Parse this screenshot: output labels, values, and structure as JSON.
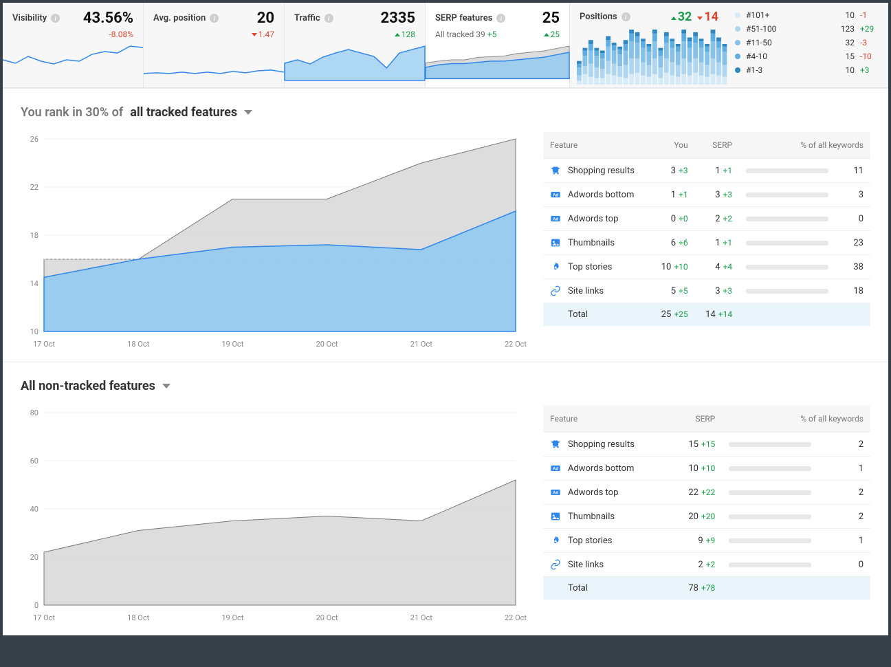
{
  "colors": {
    "blue": "#2f86eb",
    "blue_fill": "#8ec9f2",
    "grey_fill": "#d9d9d9",
    "pos": "#1a9c4a",
    "neg": "#e0452f",
    "grid": "#f0f0f0",
    "text_muted": "#888888"
  },
  "cards": {
    "visibility": {
      "title": "Visibility",
      "value": "43.56%",
      "delta": "-8.08%",
      "delta_dir": "neg",
      "spark": {
        "type": "line",
        "ymin": 0,
        "ymax": 60,
        "points": [
          30,
          25,
          35,
          28,
          24,
          30,
          28,
          38,
          42,
          40,
          50,
          48
        ]
      }
    },
    "avg_position": {
      "title": "Avg. position",
      "value": "20",
      "delta": "1.47",
      "delta_dir": "neg",
      "spark": {
        "type": "line",
        "ymin": 0,
        "ymax": 60,
        "points": [
          10,
          11,
          10,
          12,
          10,
          12,
          10,
          13,
          11,
          14,
          15,
          12
        ]
      }
    },
    "traffic": {
      "title": "Traffic",
      "value": "2335",
      "delta": "128",
      "delta_dir": "pos",
      "spark": {
        "type": "area_blue",
        "ymin": 0,
        "ymax": 60,
        "points": [
          25,
          30,
          24,
          34,
          40,
          45,
          40,
          35,
          18,
          40,
          45,
          50
        ]
      }
    },
    "serp": {
      "title": "SERP features",
      "value": "25",
      "sub_label": "All tracked",
      "sub_val": "39",
      "sub_delta": "+5",
      "delta": "25",
      "delta_dir": "pos",
      "spark": {
        "type": "area_both",
        "ymin": 0,
        "ymax": 60,
        "grey": [
          25,
          28,
          30,
          30,
          34,
          35,
          36,
          40,
          42,
          44,
          48,
          52
        ],
        "blue": [
          18,
          22,
          24,
          24,
          26,
          28,
          28,
          30,
          32,
          34,
          38,
          42
        ]
      }
    },
    "positions": {
      "title": "Positions",
      "up": "32",
      "down": "14",
      "bars": [
        [
          3,
          8,
          6,
          5,
          5,
          8,
          7,
          6,
          5,
          8,
          9,
          7,
          6,
          8,
          5,
          9,
          7,
          6,
          8,
          7,
          9,
          7,
          6,
          8,
          7,
          6
        ],
        [
          4,
          6,
          10,
          8,
          7,
          10,
          9,
          8,
          10,
          12,
          11,
          10,
          9,
          12,
          8,
          11,
          10,
          9,
          12,
          10,
          11,
          10,
          9,
          12,
          10,
          9
        ],
        [
          6,
          8,
          10,
          9,
          8,
          11,
          10,
          9,
          11,
          13,
          12,
          11,
          10,
          13,
          9,
          12,
          11,
          10,
          13,
          11,
          12,
          11,
          10,
          13,
          11,
          10
        ],
        [
          3,
          4,
          5,
          4,
          4,
          5,
          4,
          4,
          5,
          6,
          5,
          5,
          4,
          6,
          4,
          5,
          5,
          4,
          6,
          5,
          5,
          5,
          4,
          6,
          5,
          4
        ],
        [
          2,
          2,
          3,
          2,
          2,
          3,
          2,
          2,
          3,
          3,
          3,
          2,
          2,
          3,
          2,
          3,
          2,
          2,
          3,
          3,
          3,
          2,
          2,
          3,
          3,
          2
        ]
      ],
      "bar_colors": [
        "#d6eaf8",
        "#aed6f1",
        "#85c1e9",
        "#5dade2",
        "#2e86c1"
      ],
      "legend": [
        {
          "color": "#d6eaf8",
          "label": "#101+",
          "val": "10",
          "delta": "-1",
          "dir": "neg"
        },
        {
          "color": "#aed6f1",
          "label": "#51-100",
          "val": "123",
          "delta": "+29",
          "dir": "pos"
        },
        {
          "color": "#85c1e9",
          "label": "#11-50",
          "val": "32",
          "delta": "-3",
          "dir": "neg"
        },
        {
          "color": "#5dade2",
          "label": "#4-10",
          "val": "15",
          "delta": "-10",
          "dir": "neg"
        },
        {
          "color": "#2e86c1",
          "label": "#1-3",
          "val": "10",
          "delta": "+3",
          "dir": "pos"
        }
      ]
    }
  },
  "tracked": {
    "title_prefix": "You rank in 30% of",
    "title_bold": "all tracked features",
    "chart": {
      "x_labels": [
        "17 Oct",
        "18 Oct",
        "19 Oct",
        "20 Oct",
        "21 Oct",
        "22 Oct"
      ],
      "y_ticks": [
        10,
        14,
        18,
        22,
        26
      ],
      "ymin": 10,
      "ymax": 26,
      "dash_y": 16,
      "grey": [
        16,
        16,
        21,
        21,
        24,
        26
      ],
      "blue": [
        14.5,
        16,
        17,
        17.2,
        16.8,
        20
      ]
    },
    "table": {
      "headers": {
        "feature": "Feature",
        "you": "You",
        "serp": "SERP",
        "pct": "% of all keywords"
      },
      "rows": [
        {
          "icon": "shopping",
          "name": "Shopping results",
          "you": "3",
          "you_d": "+3",
          "serp": "1",
          "serp_d": "+1",
          "bar": 11,
          "pct": "11"
        },
        {
          "icon": "ad",
          "name": "Adwords bottom",
          "you": "1",
          "you_d": "+1",
          "serp": "3",
          "serp_d": "+3",
          "bar": 3,
          "pct": "3"
        },
        {
          "icon": "ad",
          "name": "Adwords top",
          "you": "0",
          "you_d": "+0",
          "serp": "2",
          "serp_d": "+2",
          "bar": 0,
          "pct": "0"
        },
        {
          "icon": "image",
          "name": "Thumbnails",
          "you": "6",
          "you_d": "+6",
          "serp": "1",
          "serp_d": "+1",
          "bar": 23,
          "pct": "23"
        },
        {
          "icon": "fire",
          "name": "Top stories",
          "you": "10",
          "you_d": "+10",
          "serp": "4",
          "serp_d": "+4",
          "bar": 38,
          "pct": "38"
        },
        {
          "icon": "link",
          "name": "Site links",
          "you": "5",
          "you_d": "+5",
          "serp": "3",
          "serp_d": "+3",
          "bar": 18,
          "pct": "18"
        }
      ],
      "total": {
        "label": "Total",
        "you": "25",
        "you_d": "+25",
        "serp": "14",
        "serp_d": "+14"
      }
    }
  },
  "nontracked": {
    "title": "All non-tracked features",
    "chart": {
      "x_labels": [
        "17 Oct",
        "18 Oct",
        "19 Oct",
        "20 Oct",
        "21 Oct",
        "22 Oct"
      ],
      "y_ticks": [
        0,
        20,
        40,
        60,
        80
      ],
      "ymin": 0,
      "ymax": 80,
      "grey": [
        22,
        31,
        35,
        37,
        35,
        52
      ]
    },
    "table": {
      "headers": {
        "feature": "Feature",
        "serp": "SERP",
        "pct": "% of all keywords"
      },
      "rows": [
        {
          "icon": "shopping",
          "name": "Shopping results",
          "serp": "15",
          "serp_d": "+15",
          "bar": 2,
          "pct": "2"
        },
        {
          "icon": "ad",
          "name": "Adwords bottom",
          "serp": "10",
          "serp_d": "+10",
          "bar": 1,
          "pct": "1"
        },
        {
          "icon": "ad",
          "name": "Adwords top",
          "serp": "22",
          "serp_d": "+22",
          "bar": 2,
          "pct": "2"
        },
        {
          "icon": "image",
          "name": "Thumbnails",
          "serp": "20",
          "serp_d": "+20",
          "bar": 2,
          "pct": "2"
        },
        {
          "icon": "fire",
          "name": "Top stories",
          "serp": "9",
          "serp_d": "+9",
          "bar": 1,
          "pct": "1"
        },
        {
          "icon": "link",
          "name": "Site links",
          "serp": "2",
          "serp_d": "+2",
          "bar": 0,
          "pct": "0"
        }
      ],
      "total": {
        "label": "Total",
        "serp": "78",
        "serp_d": "+78"
      }
    }
  }
}
